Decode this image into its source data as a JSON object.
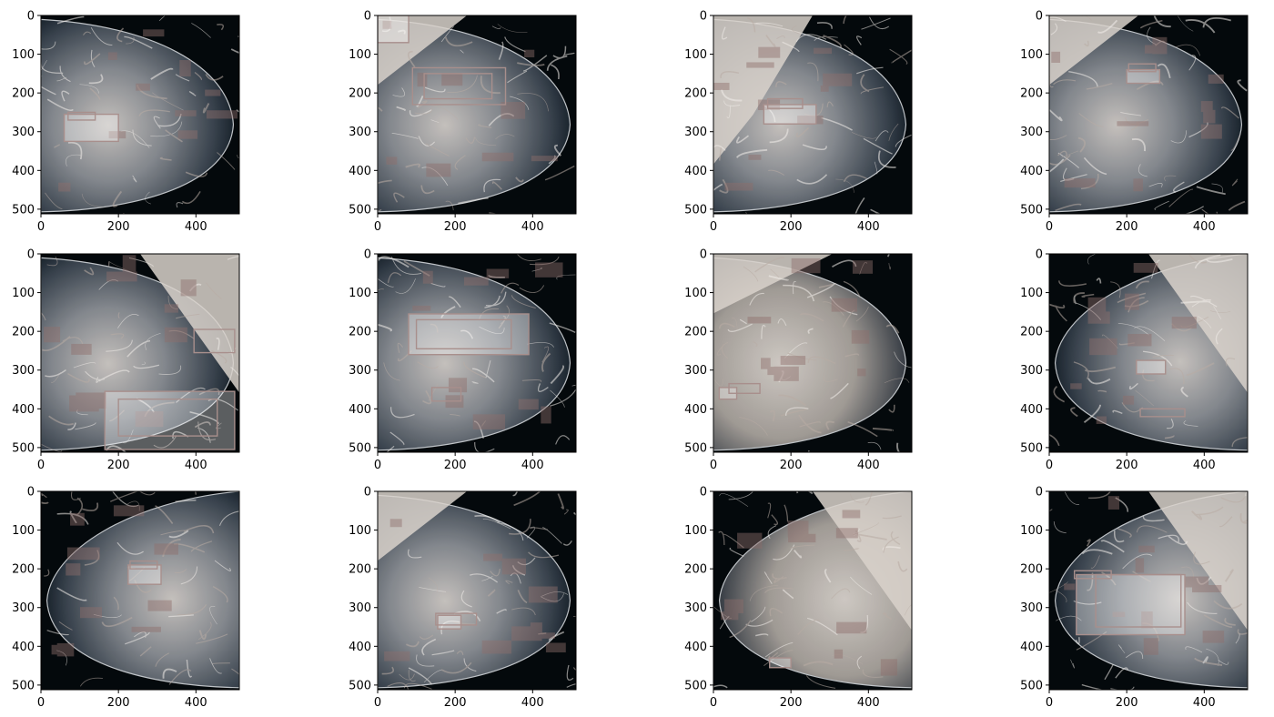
{
  "figure": {
    "x_tick_labels": [
      "0",
      "200",
      "400"
    ],
    "y_tick_labels": [
      "0",
      "100",
      "200",
      "300",
      "400",
      "500"
    ],
    "axis_range": [
      0,
      512
    ],
    "panels": [
      {
        "id": "r1c1",
        "boxes": [
          [
            60,
            255,
            200,
            325
          ],
          [
            70,
            250,
            140,
            270
          ]
        ]
      },
      {
        "id": "r1c2",
        "boxes": [
          [
            0,
            0,
            80,
            70
          ],
          [
            120,
            150,
            295,
            215
          ],
          [
            90,
            135,
            330,
            230
          ]
        ]
      },
      {
        "id": "r1c3",
        "boxes": [
          [
            130,
            230,
            265,
            280
          ],
          [
            140,
            215,
            230,
            240
          ]
        ]
      },
      {
        "id": "r1c4",
        "boxes": [
          [
            200,
            140,
            285,
            175
          ],
          [
            205,
            125,
            275,
            145
          ]
        ]
      },
      {
        "id": "r2c1",
        "boxes": [
          [
            165,
            355,
            500,
            505
          ],
          [
            200,
            375,
            455,
            470
          ],
          [
            395,
            195,
            500,
            255
          ]
        ]
      },
      {
        "id": "r2c2",
        "boxes": [
          [
            80,
            155,
            390,
            260
          ],
          [
            100,
            170,
            345,
            245
          ],
          [
            140,
            345,
            215,
            380
          ]
        ]
      },
      {
        "id": "r2c3",
        "boxes": [
          [
            15,
            345,
            60,
            375
          ],
          [
            40,
            335,
            120,
            360
          ]
        ]
      },
      {
        "id": "r2c4",
        "boxes": [
          [
            225,
            275,
            300,
            310
          ],
          [
            235,
            400,
            350,
            420
          ]
        ]
      },
      {
        "id": "r3c1",
        "boxes": [
          [
            225,
            190,
            310,
            240
          ],
          [
            230,
            180,
            300,
            200
          ]
        ]
      },
      {
        "id": "r3c2",
        "boxes": [
          [
            155,
            320,
            215,
            355
          ],
          [
            150,
            315,
            255,
            345
          ]
        ]
      },
      {
        "id": "r3c3",
        "boxes": [
          [
            145,
            430,
            200,
            455
          ]
        ]
      },
      {
        "id": "r3c4",
        "boxes": [
          [
            70,
            215,
            350,
            370
          ],
          [
            120,
            215,
            340,
            350
          ],
          [
            65,
            205,
            160,
            225
          ]
        ]
      }
    ]
  }
}
